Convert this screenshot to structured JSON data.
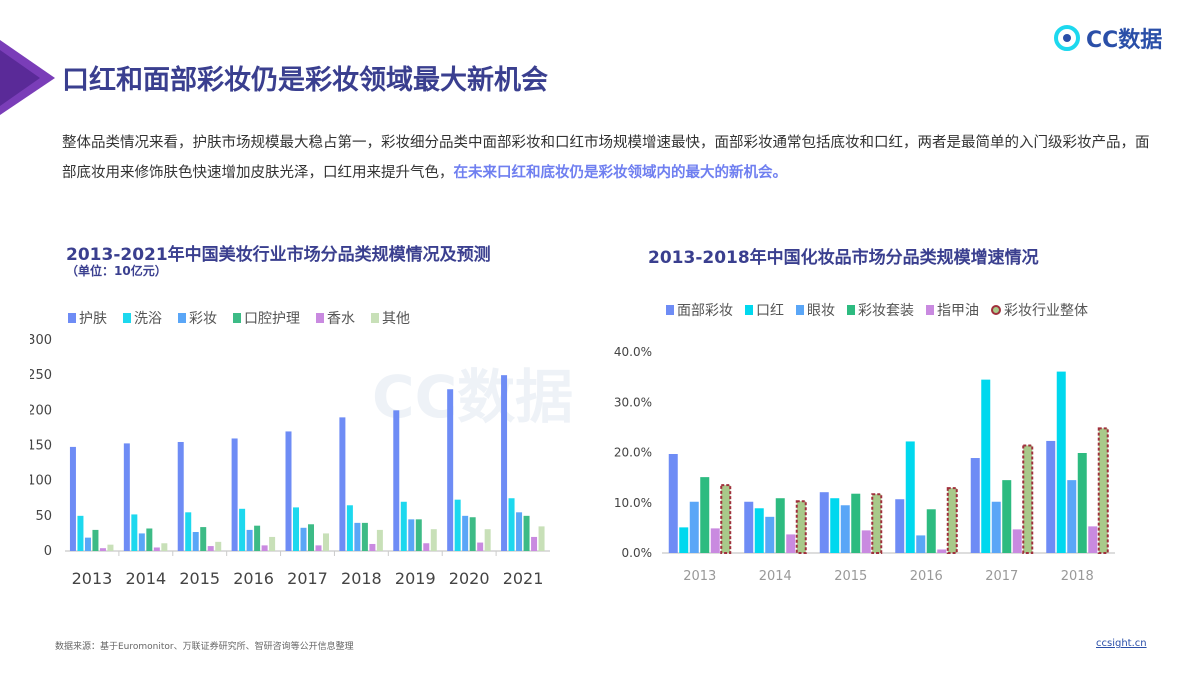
{
  "header": {
    "title": "口红和面部彩妆仍是彩妆领域最大新机会",
    "logo_text": "CC数据"
  },
  "description": {
    "text": "整体品类情况来看，护肤市场规模最大稳占第一，彩妆细分品类中面部彩妆和口红市场规模增速最快，面部彩妆通常包括底妆和口红，两者是最简单的入门级彩妆产品，面部底妆用来修饰肤色快速增加皮肤光泽，口红用来提升气色，",
    "highlight": "在未来口红和底妆仍是彩妆领域内的最大的新机会。"
  },
  "watermark": "CC数据",
  "chart_data": [
    {
      "type": "bar",
      "title": "2013-2021年中国美妆行业市场分品类规模情况及预测",
      "subtitle": "（单位：10亿元）",
      "categories": [
        "2013",
        "2014",
        "2015",
        "2016",
        "2017",
        "2018",
        "2019",
        "2020",
        "2021"
      ],
      "ylim": [
        0,
        300
      ],
      "yticks": [
        "0",
        "50",
        "100",
        "150",
        "200",
        "250",
        "300"
      ],
      "legend": "top",
      "grid": false,
      "series": [
        {
          "name": "护肤",
          "color": "#6e8cf5",
          "values": [
            148,
            153,
            155,
            160,
            170,
            190,
            200,
            230,
            250
          ]
        },
        {
          "name": "洗浴",
          "color": "#1dd8ee",
          "values": [
            50,
            52,
            55,
            60,
            62,
            65,
            70,
            73,
            75
          ]
        },
        {
          "name": "彩妆",
          "color": "#5aa6f7",
          "values": [
            19,
            25,
            27,
            30,
            33,
            40,
            45,
            50,
            55
          ]
        },
        {
          "name": "口腔护理",
          "color": "#3dbb86",
          "values": [
            30,
            32,
            34,
            36,
            38,
            40,
            45,
            48,
            50
          ]
        },
        {
          "name": "香水",
          "color": "#c98ae0",
          "values": [
            4,
            5,
            7,
            8,
            8,
            10,
            11,
            12,
            20
          ]
        },
        {
          "name": "其他",
          "color": "#c8e0b8",
          "values": [
            9,
            11,
            13,
            20,
            25,
            30,
            31,
            31,
            35
          ]
        }
      ]
    },
    {
      "type": "bar",
      "title": "2013-2018年中国化妆品市场分品类规模增速情况",
      "categories": [
        "2013",
        "2014",
        "2015",
        "2016",
        "2017",
        "2018"
      ],
      "ylim": [
        0,
        40
      ],
      "yticks": [
        "0.0%",
        "10.0%",
        "20.0%",
        "30.0%",
        "40.0%"
      ],
      "legend": "top",
      "grid": false,
      "series": [
        {
          "name": "面部彩妆",
          "color": "#6e8cf5",
          "values": [
            19.7,
            10.2,
            12.1,
            10.7,
            18.9,
            22.3
          ]
        },
        {
          "name": "口红",
          "color": "#00d8ee",
          "values": [
            5.1,
            8.9,
            10.9,
            22.2,
            34.5,
            36.1
          ]
        },
        {
          "name": "眼妆",
          "color": "#5aa6f7",
          "values": [
            10.2,
            7.2,
            9.5,
            3.5,
            10.2,
            14.5
          ]
        },
        {
          "name": "彩妆套装",
          "color": "#2dbb80",
          "values": [
            15.1,
            10.9,
            11.8,
            8.7,
            14.5,
            19.9
          ]
        },
        {
          "name": "指甲油",
          "color": "#c98ae0",
          "values": [
            4.9,
            3.7,
            4.5,
            0.7,
            4.7,
            5.3
          ]
        },
        {
          "name": "彩妆行业整体",
          "color": "#a9c98a",
          "border": "#a0303c",
          "values": [
            13.5,
            10.3,
            11.7,
            12.9,
            21.4,
            24.8
          ]
        }
      ]
    }
  ],
  "footer": {
    "source": "数据来源：基于Euromonitor、万联证券研究所、智研咨询等公开信息整理",
    "site": "ccsight.cn"
  }
}
